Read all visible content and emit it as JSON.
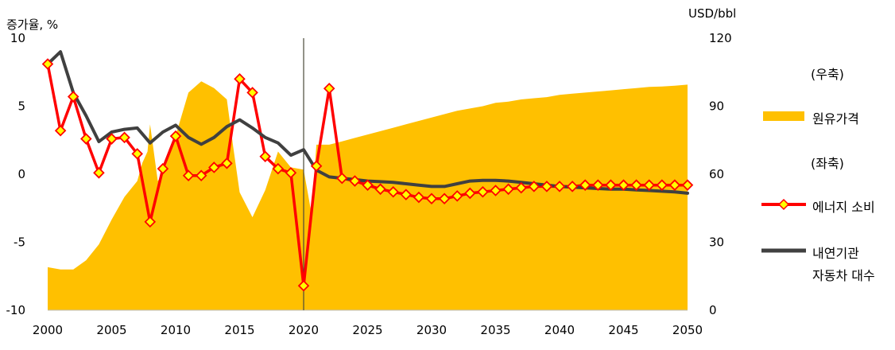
{
  "chart_data": {
    "type": "area+line",
    "left_axis_title": "증가율, %",
    "right_axis_title": "USD/bbl",
    "x": [
      2000,
      2001,
      2002,
      2003,
      2004,
      2005,
      2006,
      2007,
      2008,
      2009,
      2010,
      2011,
      2012,
      2013,
      2014,
      2015,
      2016,
      2017,
      2018,
      2019,
      2020,
      2021,
      2022,
      2023,
      2024,
      2025,
      2026,
      2027,
      2028,
      2029,
      2030,
      2031,
      2032,
      2033,
      2034,
      2035,
      2036,
      2037,
      2038,
      2039,
      2040,
      2041,
      2042,
      2043,
      2044,
      2045,
      2046,
      2047,
      2048,
      2049,
      2050
    ],
    "x_ticks": [
      2000,
      2005,
      2010,
      2015,
      2020,
      2025,
      2030,
      2035,
      2040,
      2045,
      2050
    ],
    "ylim_left": [
      -10,
      10
    ],
    "yticks_left": [
      10,
      5,
      0,
      -5,
      -10
    ],
    "ylim_right": [
      0,
      120
    ],
    "yticks_right": [
      120,
      90,
      60,
      30,
      0
    ],
    "vertical_marker_year": 2020,
    "series": [
      {
        "name": "원유가격",
        "axis": "right",
        "kind": "area",
        "color": "#FFC000",
        "x": [
          2000,
          2001,
          2002,
          2003,
          2004,
          2005,
          2006,
          2007,
          2007.4,
          2007.8,
          2008,
          2008.6,
          2009,
          2010,
          2011,
          2012,
          2013,
          2014,
          2014.5,
          2015,
          2016,
          2017,
          2018,
          2019,
          2020,
          2020.6,
          2021,
          2022,
          2023,
          2024,
          2025,
          2026,
          2027,
          2028,
          2029,
          2030,
          2031,
          2032,
          2033,
          2034,
          2035,
          2036,
          2037,
          2038,
          2039,
          2040,
          2041,
          2042,
          2043,
          2044,
          2045,
          2046,
          2047,
          2048,
          2049,
          2050
        ],
        "values": [
          19,
          18,
          18,
          22,
          29,
          40,
          50,
          57,
          65,
          70,
          82,
          57,
          60,
          77,
          96,
          101,
          98,
          93,
          72,
          52,
          41,
          53,
          70,
          63,
          62,
          43,
          73,
          73,
          74.5,
          76,
          77.5,
          79,
          80.5,
          82,
          83.5,
          85,
          86.5,
          88,
          89,
          90,
          91.5,
          92,
          93,
          93.5,
          94,
          95,
          95.5,
          96,
          96.5,
          97,
          97.5,
          98,
          98.5,
          98.7,
          99,
          99.5
        ]
      },
      {
        "name": "에너지 소비",
        "axis": "left",
        "kind": "line-marker",
        "color": "#FF0000",
        "marker_color": "#FFFF00",
        "values": [
          8.1,
          3.2,
          5.7,
          2.6,
          0.1,
          2.6,
          2.7,
          1.5,
          -3.5,
          0.4,
          2.8,
          -0.1,
          -0.1,
          0.5,
          0.8,
          7.0,
          6.0,
          1.3,
          0.4,
          0.1,
          -8.2,
          0.6,
          6.3,
          -0.3,
          -0.5,
          -0.8,
          -1.1,
          -1.3,
          -1.5,
          -1.7,
          -1.8,
          -1.8,
          -1.6,
          -1.4,
          -1.3,
          -1.2,
          -1.1,
          -1.0,
          -0.9,
          -0.9,
          -0.9,
          -0.9,
          -0.8,
          -0.8,
          -0.8,
          -0.8,
          -0.8,
          -0.8,
          -0.8,
          -0.8,
          -0.8
        ]
      },
      {
        "name": "내연기관 자동차 대수",
        "axis": "left",
        "kind": "line",
        "color": "#404040",
        "values": [
          8.1,
          9.0,
          6.0,
          4.3,
          2.4,
          3.1,
          3.3,
          3.4,
          2.3,
          3.1,
          3.6,
          2.7,
          2.2,
          2.7,
          3.5,
          4.0,
          3.4,
          2.7,
          2.3,
          1.4,
          1.8,
          0.3,
          -0.2,
          -0.3,
          -0.4,
          -0.5,
          -0.55,
          -0.6,
          -0.7,
          -0.8,
          -0.9,
          -0.9,
          -0.7,
          -0.5,
          -0.45,
          -0.45,
          -0.5,
          -0.6,
          -0.7,
          -0.8,
          -0.9,
          -0.95,
          -1.0,
          -1.05,
          -1.1,
          -1.1,
          -1.15,
          -1.2,
          -1.25,
          -1.3,
          -1.4
        ]
      }
    ]
  },
  "legend": {
    "right_header": "(우축)",
    "left_header": "(좌축)",
    "oil_label": "원유가격",
    "energy_label": "에너지 소비",
    "vehicle_label_line1": "내연기관",
    "vehicle_label_line2": "자동차 대수"
  }
}
